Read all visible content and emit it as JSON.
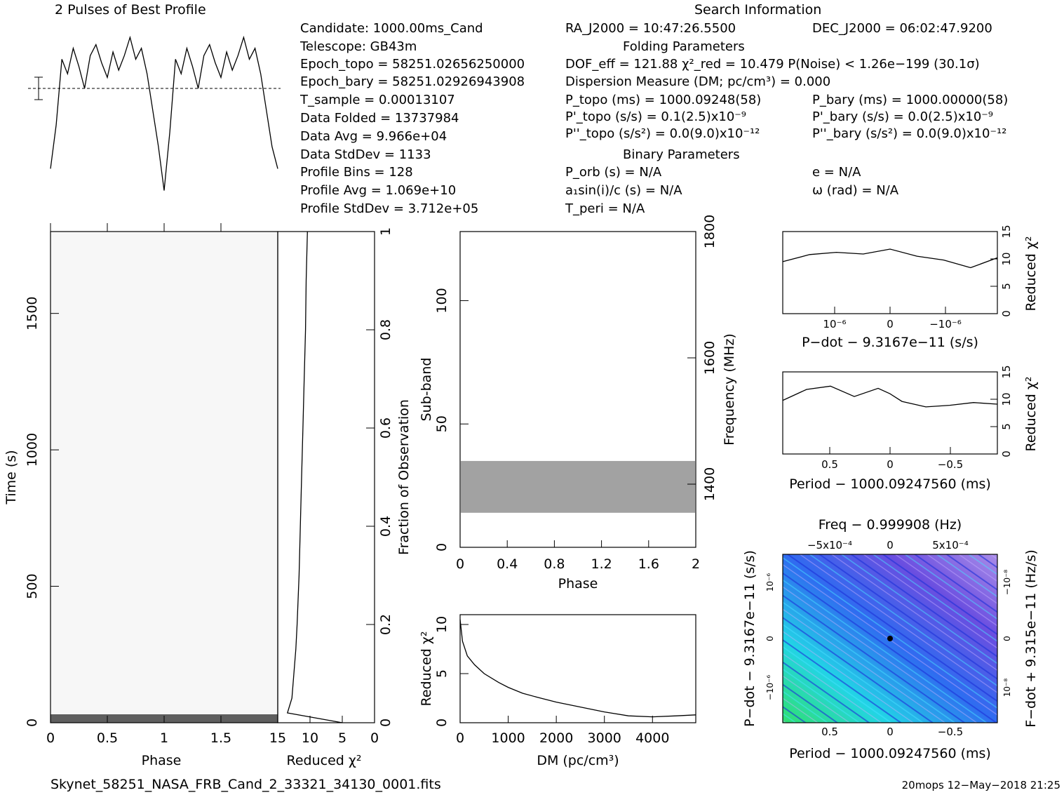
{
  "header": {
    "profile_title": "2 Pulses of Best Profile",
    "search_title": "Search Information"
  },
  "candidate_info": {
    "candidate": "Candidate:  1000.00ms_Cand",
    "telescope": "Telescope:  GB43m",
    "epoch_topo": "Epoch_topo = 58251.02656250000",
    "epoch_bary": "Epoch_bary = 58251.02926943908",
    "t_sample": "T_sample        =  0.00013107",
    "data_folded": "Data Folded     =  13737984",
    "data_avg": "Data Avg        =  9.966e+04",
    "data_stddev": "Data StdDev     =  1133",
    "profile_bins": "Profile Bins    =  128",
    "profile_avg": "Profile Avg     =  1.069e+10",
    "profile_stddev": "Profile StdDev  =  3.712e+05"
  },
  "search_info": {
    "ra": "RA_J2000 = 10:47:26.5500",
    "dec": "DEC_J2000 = 06:02:47.9200",
    "folding_title": "Folding Parameters",
    "dof": "DOF_eff = 121.88  χ²_red = 10.479  P(Noise) < 1.26e−199  (30.1σ)",
    "dm": "Dispersion Measure (DM; pc/cm³) = 0.000",
    "p_topo": "P_topo (ms) =  1000.09248(58)",
    "p_bary": "P_bary (ms) =  1000.00000(58)",
    "pd_topo": "P'_topo (s/s) =  0.1(2.5)x10⁻⁹",
    "pd_bary": "P'_bary (s/s) = 0.0(2.5)x10⁻⁹",
    "pdd_topo": "P''_topo (s/s²) = 0.0(9.0)x10⁻¹²",
    "pdd_bary": "P''_bary (s/s²) = 0.0(9.0)x10⁻¹²",
    "binary_title": "Binary Parameters",
    "p_orb": "P_orb (s) = N/A",
    "e": "e = N/A",
    "a1sini": "a₁sin(i)/c (s) = N/A",
    "omega": "ω (rad) = N/A",
    "t_peri": "T_peri = N/A"
  },
  "footer": {
    "filename": "Skynet_58251_NASA_FRB_Cand_2_33321_34130_0001.fits",
    "stamp": "20mops 12−May−2018 21:25"
  },
  "colors": {
    "ink": "#000000",
    "grey": "#555555",
    "cyan": "#22d4e6",
    "blue": "#2040ff",
    "green": "#30e070",
    "purple": "#9070e0"
  },
  "chart_data": [
    {
      "id": "profile",
      "type": "line",
      "title": "2 Pulses of Best Profile",
      "x": [
        0,
        0.05,
        0.1,
        0.15,
        0.2,
        0.25,
        0.3,
        0.35,
        0.4,
        0.45,
        0.5,
        0.55,
        0.6,
        0.65,
        0.7,
        0.75,
        0.8,
        0.85,
        0.9,
        0.95,
        1.0,
        1.05,
        1.1,
        1.15,
        1.2,
        1.25,
        1.3,
        1.35,
        1.4,
        1.45,
        1.5,
        1.55,
        1.6,
        1.65,
        1.7,
        1.75,
        1.8,
        1.85,
        1.9,
        1.95,
        2.0
      ],
      "y": [
        -2.2,
        -1.0,
        0.8,
        0.4,
        1.1,
        0.6,
        0.0,
        0.9,
        1.2,
        0.7,
        0.3,
        1.0,
        0.5,
        0.9,
        1.4,
        0.8,
        1.1,
        0.4,
        -0.6,
        -1.6,
        -2.8,
        -1.2,
        0.8,
        0.4,
        1.1,
        0.6,
        0.0,
        0.9,
        1.2,
        0.7,
        0.3,
        1.0,
        0.5,
        0.9,
        1.4,
        0.8,
        1.1,
        0.4,
        -0.6,
        -1.6,
        -2.2
      ],
      "xlim": [
        0,
        2
      ]
    },
    {
      "id": "time-phase",
      "type": "heatmap",
      "xlabel": "Phase",
      "ylabel": "Time (s)",
      "xlim": [
        0,
        2
      ],
      "ylim": [
        0,
        1800
      ],
      "xticks": [
        "0",
        "0.5",
        "1",
        "1.5"
      ],
      "yticks": [
        "0",
        "500",
        "1000",
        "1500"
      ]
    },
    {
      "id": "time-chi2",
      "type": "line",
      "xlabel": "Reduced χ²",
      "ylabel": "Fraction of Observation",
      "xlim": [
        15,
        0
      ],
      "ylim": [
        0,
        1
      ],
      "xticks": [
        "15",
        "10",
        "5",
        "0"
      ],
      "yticks": [
        "0",
        "0.2",
        "0.4",
        "0.6",
        "0.8",
        "1"
      ],
      "frac": [
        0,
        0.02,
        0.05,
        0.1,
        0.15,
        0.2,
        0.3,
        0.4,
        0.5,
        0.6,
        0.7,
        0.8,
        0.9,
        1.0
      ],
      "chi2": [
        5,
        13.5,
        12.8,
        12.5,
        12.2,
        12.0,
        11.7,
        11.5,
        11.3,
        11.1,
        10.9,
        10.7,
        10.6,
        10.4
      ]
    },
    {
      "id": "subband",
      "type": "heatmap",
      "xlabel": "Phase",
      "ylabel": "Sub-band",
      "y2label": "Frequency (MHz)",
      "xlim": [
        0,
        2
      ],
      "ylim": [
        0,
        128
      ],
      "xticks": [
        "0",
        "0.4",
        "0.8",
        "1.2",
        "1.6",
        "2"
      ],
      "yticks": [
        "0",
        "50",
        "100"
      ],
      "y2ticks": [
        "1400",
        "1600",
        "1800"
      ],
      "band_rows": [
        14,
        35
      ]
    },
    {
      "id": "dm-chi2",
      "type": "line",
      "xlabel": "DM (pc/cm³)",
      "ylabel": "Reduced χ²",
      "xlim": [
        0,
        4900
      ],
      "ylim": [
        0,
        11
      ],
      "xticks": [
        "0",
        "1000",
        "2000",
        "3000",
        "4000"
      ],
      "yticks": [
        "0",
        "5",
        "10"
      ],
      "x": [
        0,
        50,
        150,
        300,
        500,
        800,
        1000,
        1300,
        1600,
        2000,
        2500,
        3000,
        3500,
        4000,
        4500,
        4900
      ],
      "y": [
        10.5,
        8.3,
        6.8,
        5.9,
        5.0,
        4.1,
        3.6,
        3.0,
        2.6,
        2.1,
        1.6,
        1.1,
        0.7,
        0.6,
        0.7,
        0.8
      ]
    },
    {
      "id": "pdot-chi2",
      "type": "line",
      "xlabel": "P−dot − 9.3167e−11 (s/s)",
      "ylabel": "Reduced χ²",
      "xlim": [
        2e-06,
        -2e-06
      ],
      "ylim": [
        0,
        15
      ],
      "xticks": [
        "10⁻⁶",
        "0",
        "−10⁻⁶"
      ],
      "yticks": [
        "0",
        "5",
        "10",
        "15"
      ],
      "x": [
        2e-06,
        1.5e-06,
        1e-06,
        5e-07,
        0,
        -5e-07,
        -1e-06,
        -1.5e-06,
        -2e-06
      ],
      "y": [
        9.5,
        10.8,
        11.2,
        10.9,
        11.8,
        10.5,
        9.8,
        8.4,
        10.2
      ]
    },
    {
      "id": "period-chi2",
      "type": "line",
      "xlabel": "Period − 1000.09247560 (ms)",
      "ylabel": "Reduced χ²",
      "xlim": [
        0.9,
        -0.9
      ],
      "ylim": [
        0,
        15
      ],
      "xticks": [
        "0.5",
        "0",
        "−0.5"
      ],
      "yticks": [
        "0",
        "5",
        "10",
        "15"
      ],
      "x": [
        0.9,
        0.7,
        0.5,
        0.3,
        0.1,
        0,
        -0.1,
        -0.3,
        -0.5,
        -0.7,
        -0.9
      ],
      "y": [
        9.8,
        11.8,
        12.4,
        10.5,
        12.0,
        11.0,
        9.6,
        8.6,
        8.9,
        9.4,
        9.1
      ]
    },
    {
      "id": "period-pdot-grid",
      "type": "heatmap",
      "title": "Freq − 0.999908 (Hz)",
      "xlabel": "Period − 1000.09247560 (ms)",
      "ylabel": "P−dot − 9.3167e−11 (s/s)",
      "y2label": "F−dot + 9.315e−11 (Hz/s)",
      "xticks": [
        "0.5",
        "0",
        "−0.5"
      ],
      "x2ticks": [
        "−5x10⁻⁴",
        "0",
        "5x10⁻⁴"
      ],
      "yticks": [
        "10⁻⁶",
        "0",
        "−10⁻⁶"
      ],
      "y2ticks": [
        "−10⁻⁸",
        "0",
        "10⁻⁸"
      ],
      "best": [
        0,
        0
      ]
    }
  ]
}
